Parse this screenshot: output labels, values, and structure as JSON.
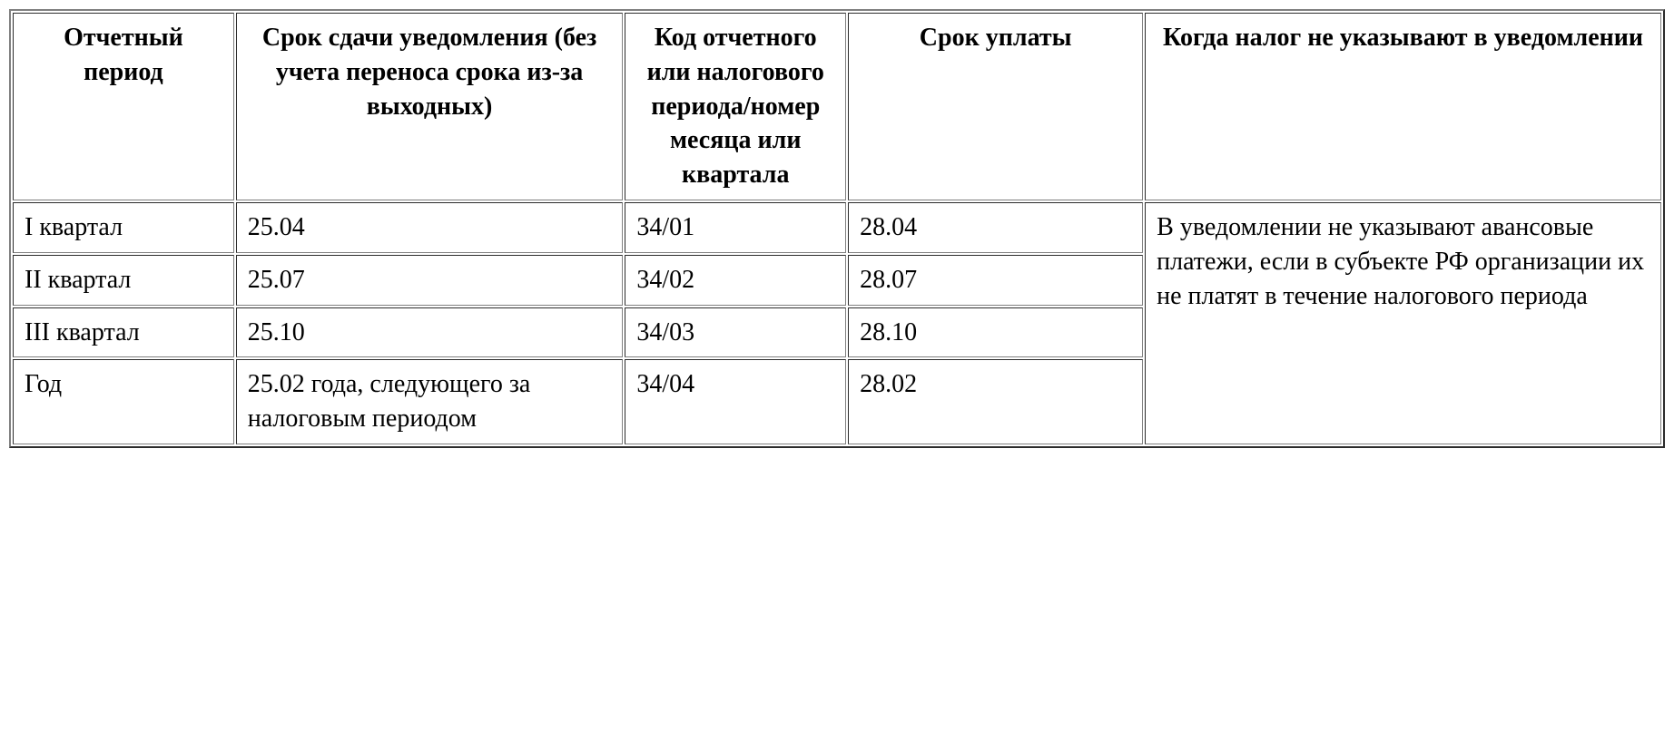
{
  "table": {
    "type": "table",
    "background_color": "#ffffff",
    "border_color": "#808080",
    "text_color": "#000000",
    "font_family": "Georgia, Times New Roman, serif",
    "header_fontsize": 28,
    "cell_fontsize": 28,
    "columns": [
      {
        "key": "period",
        "label": "Отчетный период",
        "width_pct": 12,
        "align": "left",
        "header_align": "center"
      },
      {
        "key": "submission_deadline",
        "label": "Срок сдачи уведомления (без учета переноса срока из-за выходных)",
        "width_pct": 21,
        "align": "left",
        "header_align": "center"
      },
      {
        "key": "period_code",
        "label": "Код отчетного или налогового периода/номер месяца или квартала",
        "width_pct": 12,
        "align": "left",
        "header_align": "center"
      },
      {
        "key": "payment_deadline",
        "label": "Срок уплаты",
        "width_pct": 16,
        "align": "left",
        "header_align": "center"
      },
      {
        "key": "exclusion",
        "label": "Когда налог не указывают в уведомлении",
        "width_pct": 28,
        "align": "left",
        "header_align": "center"
      }
    ],
    "rows": [
      {
        "period": "I квартал",
        "submission_deadline": "25.04",
        "period_code": "34/01",
        "payment_deadline": "28.04"
      },
      {
        "period": "II квартал",
        "submission_deadline": "25.07",
        "period_code": "34/02",
        "payment_deadline": "28.07"
      },
      {
        "period": "III квартал",
        "submission_deadline": "25.10",
        "period_code": "34/03",
        "payment_deadline": "28.10"
      },
      {
        "period": "Год",
        "submission_deadline": "25.02 года, следующего за налоговым периодом",
        "period_code": "34/04",
        "payment_deadline": "28.02"
      }
    ],
    "exclusion_note": {
      "text": "В уведомлении не указывают авансовые платежи, если в субъекте РФ организации их не платят в течение налогового периода",
      "rowspan": 4
    }
  }
}
